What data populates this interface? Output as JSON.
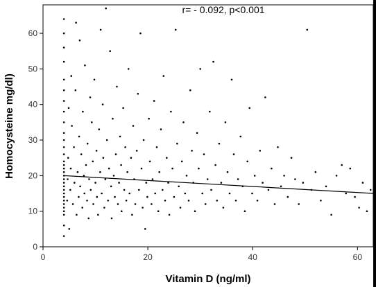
{
  "chart_data": {
    "type": "scatter",
    "title": "",
    "annotation": "r= - 0.092, p<0.001",
    "xlabel": "Vitamin D (ng/ml)",
    "ylabel": "Homocysteine mg/dl)",
    "xlim": [
      0,
      63
    ],
    "ylim": [
      0,
      68
    ],
    "xticks": [
      0,
      20,
      40,
      60
    ],
    "yticks": [
      0,
      10,
      20,
      30,
      40,
      50,
      60
    ],
    "grid": false,
    "legend": "none",
    "colors": {
      "points": "#000000",
      "fit_line": "#000000",
      "background": "#ffffff",
      "frame": "#000000"
    },
    "fit_line": {
      "x": [
        4,
        63
      ],
      "y": [
        20.0,
        15.0
      ]
    },
    "series": [
      {
        "points": [
          [
            4,
            3
          ],
          [
            4,
            6
          ],
          [
            4,
            9
          ],
          [
            4,
            10
          ],
          [
            4,
            11
          ],
          [
            4,
            12
          ],
          [
            4,
            13
          ],
          [
            4,
            14
          ],
          [
            4,
            15
          ],
          [
            4,
            16
          ],
          [
            4,
            17
          ],
          [
            4,
            18
          ],
          [
            4,
            19
          ],
          [
            4,
            20
          ],
          [
            4,
            21
          ],
          [
            4,
            22
          ],
          [
            4,
            23
          ],
          [
            4,
            24
          ],
          [
            4,
            26
          ],
          [
            4,
            28
          ],
          [
            4,
            30
          ],
          [
            4,
            32
          ],
          [
            4,
            35
          ],
          [
            4,
            38
          ],
          [
            4,
            41
          ],
          [
            4,
            44
          ],
          [
            4,
            47
          ],
          [
            4,
            52
          ],
          [
            4,
            56
          ],
          [
            4,
            60
          ],
          [
            4,
            64
          ],
          [
            4.6,
            13
          ],
          [
            4.7,
            19
          ],
          [
            4.8,
            25
          ],
          [
            4.9,
            39
          ],
          [
            5,
            5
          ],
          [
            5.2,
            16
          ],
          [
            5.3,
            22
          ],
          [
            5.4,
            48
          ],
          [
            5.5,
            34
          ],
          [
            5.7,
            12
          ],
          [
            5.9,
            28
          ],
          [
            6,
            18
          ],
          [
            6.2,
            44
          ],
          [
            6.3,
            63
          ],
          [
            6.4,
            9
          ],
          [
            6.6,
            21
          ],
          [
            6.8,
            14
          ],
          [
            6.9,
            31
          ],
          [
            7,
            58
          ],
          [
            7.1,
            17
          ],
          [
            7.3,
            26
          ],
          [
            7.5,
            11
          ],
          [
            7.6,
            38
          ],
          [
            7.8,
            20
          ],
          [
            7.9,
            15
          ],
          [
            8,
            51
          ],
          [
            8.2,
            23
          ],
          [
            8.4,
            13
          ],
          [
            8.5,
            29
          ],
          [
            8.7,
            8
          ],
          [
            8.8,
            19
          ],
          [
            9,
            42
          ],
          [
            9.1,
            16
          ],
          [
            9.3,
            35
          ],
          [
            9.5,
            24
          ],
          [
            9.6,
            12
          ],
          [
            9.8,
            47
          ],
          [
            10,
            18
          ],
          [
            10.2,
            27
          ],
          [
            10.3,
            14
          ],
          [
            10.5,
            9
          ],
          [
            10.7,
            33
          ],
          [
            10.9,
            21
          ],
          [
            11,
            61
          ],
          [
            11.2,
            15
          ],
          [
            11.4,
            40
          ],
          [
            11.5,
            25
          ],
          [
            11.7,
            11
          ],
          [
            11.9,
            19
          ],
          [
            12,
            67
          ],
          [
            12.2,
            30
          ],
          [
            12.4,
            13
          ],
          [
            12.6,
            22
          ],
          [
            12.8,
            55
          ],
          [
            13,
            17
          ],
          [
            13.1,
            8
          ],
          [
            13.3,
            36
          ],
          [
            13.5,
            20
          ],
          [
            13.7,
            14
          ],
          [
            13.9,
            26
          ],
          [
            14.1,
            45
          ],
          [
            14.3,
            12
          ],
          [
            14.5,
            18
          ],
          [
            14.7,
            31
          ],
          [
            14.9,
            23
          ],
          [
            15,
            10
          ],
          [
            15.3,
            39
          ],
          [
            15.5,
            16
          ],
          [
            15.7,
            28
          ],
          [
            15.9,
            13
          ],
          [
            16.1,
            21
          ],
          [
            16.3,
            50
          ],
          [
            16.5,
            15
          ],
          [
            16.8,
            25
          ],
          [
            17,
            9
          ],
          [
            17.2,
            34
          ],
          [
            17.4,
            19
          ],
          [
            17.6,
            12
          ],
          [
            17.9,
            27
          ],
          [
            18.1,
            43
          ],
          [
            18.3,
            16
          ],
          [
            18.6,
            60
          ],
          [
            18.8,
            22
          ],
          [
            19,
            11
          ],
          [
            19.2,
            30
          ],
          [
            19.5,
            5
          ],
          [
            19.7,
            18
          ],
          [
            19.9,
            14
          ],
          [
            20.2,
            36
          ],
          [
            20.4,
            24
          ],
          [
            20.7,
            12
          ],
          [
            20.9,
            19
          ],
          [
            21.2,
            41
          ],
          [
            21.4,
            15
          ],
          [
            21.7,
            28
          ],
          [
            22,
            10
          ],
          [
            22.2,
            21
          ],
          [
            22.5,
            33
          ],
          [
            22.8,
            16
          ],
          [
            23,
            48
          ],
          [
            23.3,
            13
          ],
          [
            23.6,
            25
          ],
          [
            23.9,
            18
          ],
          [
            24.1,
            9
          ],
          [
            24.4,
            38
          ],
          [
            24.7,
            22
          ],
          [
            25,
            14
          ],
          [
            25.3,
            61
          ],
          [
            25.6,
            29
          ],
          [
            25.9,
            17
          ],
          [
            26.2,
            11
          ],
          [
            26.5,
            24
          ],
          [
            26.8,
            35
          ],
          [
            27.1,
            15
          ],
          [
            27.4,
            20
          ],
          [
            27.8,
            13
          ],
          [
            28.1,
            44
          ],
          [
            28.4,
            27
          ],
          [
            28.7,
            18
          ],
          [
            29,
            10
          ],
          [
            29.4,
            32
          ],
          [
            29.7,
            22
          ],
          [
            30,
            50
          ],
          [
            30.4,
            15
          ],
          [
            30.7,
            26
          ],
          [
            31,
            12
          ],
          [
            31.4,
            19
          ],
          [
            31.8,
            38
          ],
          [
            32.1,
            16
          ],
          [
            32.5,
            52
          ],
          [
            32.9,
            23
          ],
          [
            33.2,
            13
          ],
          [
            33.6,
            29
          ],
          [
            34,
            18
          ],
          [
            34.4,
            11
          ],
          [
            34.8,
            35
          ],
          [
            35.2,
            21
          ],
          [
            35.6,
            15
          ],
          [
            36,
            47
          ],
          [
            36.4,
            26
          ],
          [
            36.8,
            13
          ],
          [
            37.2,
            19
          ],
          [
            37.7,
            31
          ],
          [
            38.1,
            17
          ],
          [
            38.5,
            10
          ],
          [
            39,
            24
          ],
          [
            39.4,
            39
          ],
          [
            39.9,
            15
          ],
          [
            40.4,
            20
          ],
          [
            40.9,
            13
          ],
          [
            41.4,
            27
          ],
          [
            41.9,
            18
          ],
          [
            42.4,
            42
          ],
          [
            43,
            16
          ],
          [
            43.6,
            22
          ],
          [
            44.2,
            12
          ],
          [
            44.8,
            28
          ],
          [
            45.4,
            17
          ],
          [
            46,
            20
          ],
          [
            46.7,
            14
          ],
          [
            47.4,
            25
          ],
          [
            48.1,
            19
          ],
          [
            48.8,
            12
          ],
          [
            49.6,
            18
          ],
          [
            50.4,
            61
          ],
          [
            51.2,
            16
          ],
          [
            52,
            21
          ],
          [
            53,
            13
          ],
          [
            54,
            17
          ],
          [
            55,
            9
          ],
          [
            56,
            20
          ],
          [
            57,
            23
          ],
          [
            57.8,
            15
          ],
          [
            58.6,
            22
          ],
          [
            59.5,
            14
          ],
          [
            60.3,
            11
          ],
          [
            61,
            18
          ],
          [
            61.8,
            10
          ],
          [
            62.5,
            16
          ]
        ]
      }
    ]
  }
}
